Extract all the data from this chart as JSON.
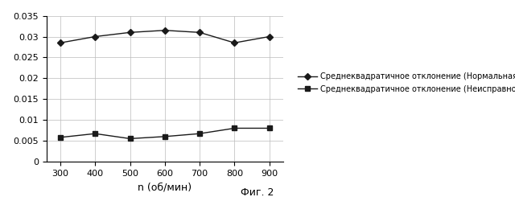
{
  "x": [
    300,
    400,
    500,
    600,
    700,
    800,
    900
  ],
  "normal_y": [
    0.0285,
    0.03,
    0.031,
    0.0315,
    0.031,
    0.0285,
    0.03
  ],
  "fault_y": [
    0.0058,
    0.0067,
    0.0055,
    0.006,
    0.0067,
    0.008,
    0.008
  ],
  "normal_label": "Среднеквадратичное отклонение (Нормальная работа)",
  "fault_label": "Среднеквадратичное отклонение (Неисправность)",
  "xlabel": "n (об/мин)",
  "caption": "Фиг. 2",
  "ylim": [
    0,
    0.035
  ],
  "yticks": [
    0,
    0.005,
    0.01,
    0.015,
    0.02,
    0.025,
    0.03,
    0.035
  ],
  "ytick_labels": [
    "0",
    "0.005",
    "0.01",
    "0.015",
    "0.02",
    "0.025",
    "0.03",
    "0.035"
  ],
  "line_color": "#1a1a1a",
  "normal_marker": "D",
  "fault_marker": "s",
  "bg_color": "#ffffff",
  "grid_color": "#bbbbbb",
  "legend_fontsize": 7.0,
  "axis_fontsize": 8,
  "caption_fontsize": 9,
  "marker_size": 4,
  "line_width": 1.0
}
